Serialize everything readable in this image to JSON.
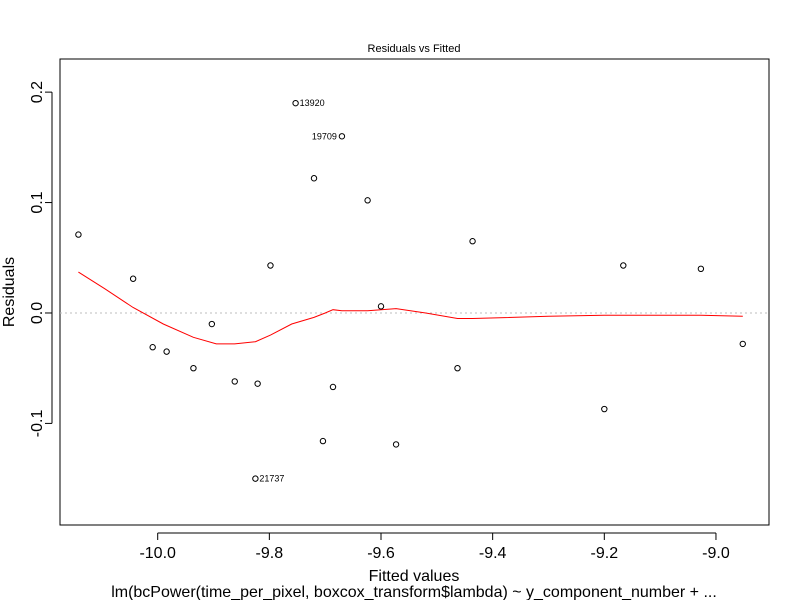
{
  "chart_data": {
    "type": "scatter",
    "title": "Residuals vs Fitted",
    "xlabel": "Fitted values",
    "ylabel": "Residuals",
    "caption": "lm(bcPower(time_per_pixel, boxcox_transform$lambda) ~ y_component_number +  ...",
    "xlim": [
      -10.175,
      -8.905
    ],
    "ylim": [
      -0.192,
      0.23
    ],
    "xticks": [
      -10.0,
      -9.8,
      -9.6,
      -9.4,
      -9.2,
      -9.0
    ],
    "xtick_labels": [
      "-10.0",
      "-9.8",
      "-9.6",
      "-9.4",
      "-9.2",
      "-9.0"
    ],
    "yticks": [
      -0.1,
      0.0,
      0.1,
      0.2
    ],
    "ytick_labels": [
      "-0.1",
      "0.0",
      "0.1",
      "0.2"
    ],
    "reference_line": 0.0,
    "grid": false,
    "points": [
      {
        "x": -10.142,
        "y": 0.071
      },
      {
        "x": -10.044,
        "y": 0.031
      },
      {
        "x": -10.009,
        "y": -0.031
      },
      {
        "x": -9.984,
        "y": -0.035
      },
      {
        "x": -9.936,
        "y": -0.05
      },
      {
        "x": -9.903,
        "y": -0.01
      },
      {
        "x": -9.862,
        "y": -0.062
      },
      {
        "x": -9.821,
        "y": -0.064
      },
      {
        "x": -9.798,
        "y": 0.043
      },
      {
        "x": -9.753,
        "y": 0.19,
        "label": "13920"
      },
      {
        "x": -9.72,
        "y": 0.122
      },
      {
        "x": -9.704,
        "y": -0.116
      },
      {
        "x": -9.686,
        "y": -0.067
      },
      {
        "x": -9.67,
        "y": 0.16,
        "label": "19709"
      },
      {
        "x": -9.624,
        "y": 0.102
      },
      {
        "x": -9.6,
        "y": 0.006
      },
      {
        "x": -9.573,
        "y": -0.119
      },
      {
        "x": -9.825,
        "y": -0.15,
        "label": "21737"
      },
      {
        "x": -9.463,
        "y": -0.05
      },
      {
        "x": -9.436,
        "y": 0.065
      },
      {
        "x": -9.2,
        "y": -0.087
      },
      {
        "x": -9.166,
        "y": 0.043
      },
      {
        "x": -9.027,
        "y": 0.04
      },
      {
        "x": -8.952,
        "y": -0.028
      }
    ],
    "smoother": [
      {
        "x": -10.142,
        "y": 0.037
      },
      {
        "x": -10.095,
        "y": 0.022
      },
      {
        "x": -10.044,
        "y": 0.005
      },
      {
        "x": -9.99,
        "y": -0.01
      },
      {
        "x": -9.936,
        "y": -0.022
      },
      {
        "x": -9.895,
        "y": -0.028
      },
      {
        "x": -9.862,
        "y": -0.028
      },
      {
        "x": -9.825,
        "y": -0.026
      },
      {
        "x": -9.798,
        "y": -0.02
      },
      {
        "x": -9.76,
        "y": -0.01
      },
      {
        "x": -9.72,
        "y": -0.004
      },
      {
        "x": -9.7,
        "y": 0.0
      },
      {
        "x": -9.686,
        "y": 0.003
      },
      {
        "x": -9.67,
        "y": 0.002
      },
      {
        "x": -9.624,
        "y": 0.002
      },
      {
        "x": -9.6,
        "y": 0.003
      },
      {
        "x": -9.573,
        "y": 0.004
      },
      {
        "x": -9.52,
        "y": 0.0
      },
      {
        "x": -9.463,
        "y": -0.005
      },
      {
        "x": -9.436,
        "y": -0.005
      },
      {
        "x": -9.3,
        "y": -0.003
      },
      {
        "x": -9.2,
        "y": -0.002
      },
      {
        "x": -9.1,
        "y": -0.002
      },
      {
        "x": -9.027,
        "y": -0.002
      },
      {
        "x": -8.952,
        "y": -0.003
      }
    ],
    "colors": {
      "points": "#000000",
      "smoother": "#ff0000",
      "reference": "#bebebe"
    }
  }
}
